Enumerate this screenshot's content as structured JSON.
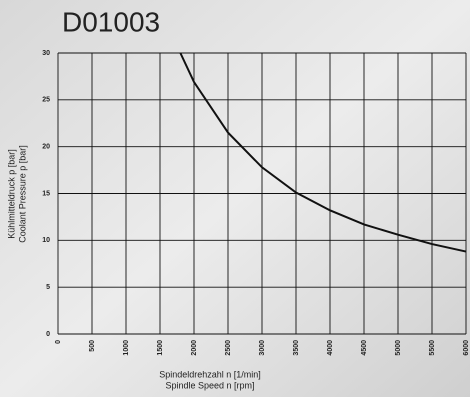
{
  "chart_data": {
    "type": "line",
    "title": "D01003",
    "x_label": [
      "Spindeldrehzahl n [1/min]",
      "Spindle Speed n [rpm]"
    ],
    "y_label": [
      "Kühlmitteldruck p [bar]",
      "Coolant Pressure p [bar]"
    ],
    "series": [
      {
        "color": "#111111",
        "x": [
          1800,
          2000,
          2500,
          3000,
          3500,
          4000,
          4500,
          5000,
          5500,
          6000
        ],
        "values": [
          30,
          26.9,
          21.5,
          17.8,
          15.1,
          13.2,
          11.7,
          10.6,
          9.6,
          8.8
        ]
      }
    ],
    "xlim": [
      0,
      6000
    ],
    "xticks": [
      0,
      500,
      1000,
      1500,
      2000,
      2500,
      3000,
      3500,
      4000,
      4500,
      5000,
      5500,
      6000
    ],
    "ylim": [
      0,
      30
    ],
    "yticks": [
      0,
      5,
      10,
      15,
      20,
      25,
      30
    ],
    "grid": true
  }
}
